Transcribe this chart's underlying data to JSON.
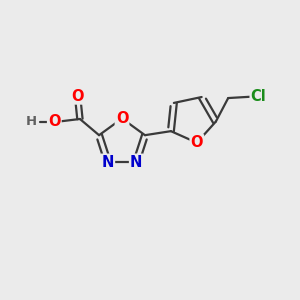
{
  "background_color": "#ebebeb",
  "bond_color": "#3a3a3a",
  "bond_width": 1.6,
  "atom_colors": {
    "O": "#ff0000",
    "N": "#0000cc",
    "Cl": "#1a8c1a",
    "H": "#606060"
  },
  "font_size": 10.5,
  "fig_width": 3.0,
  "fig_height": 3.0,
  "dpi": 100
}
